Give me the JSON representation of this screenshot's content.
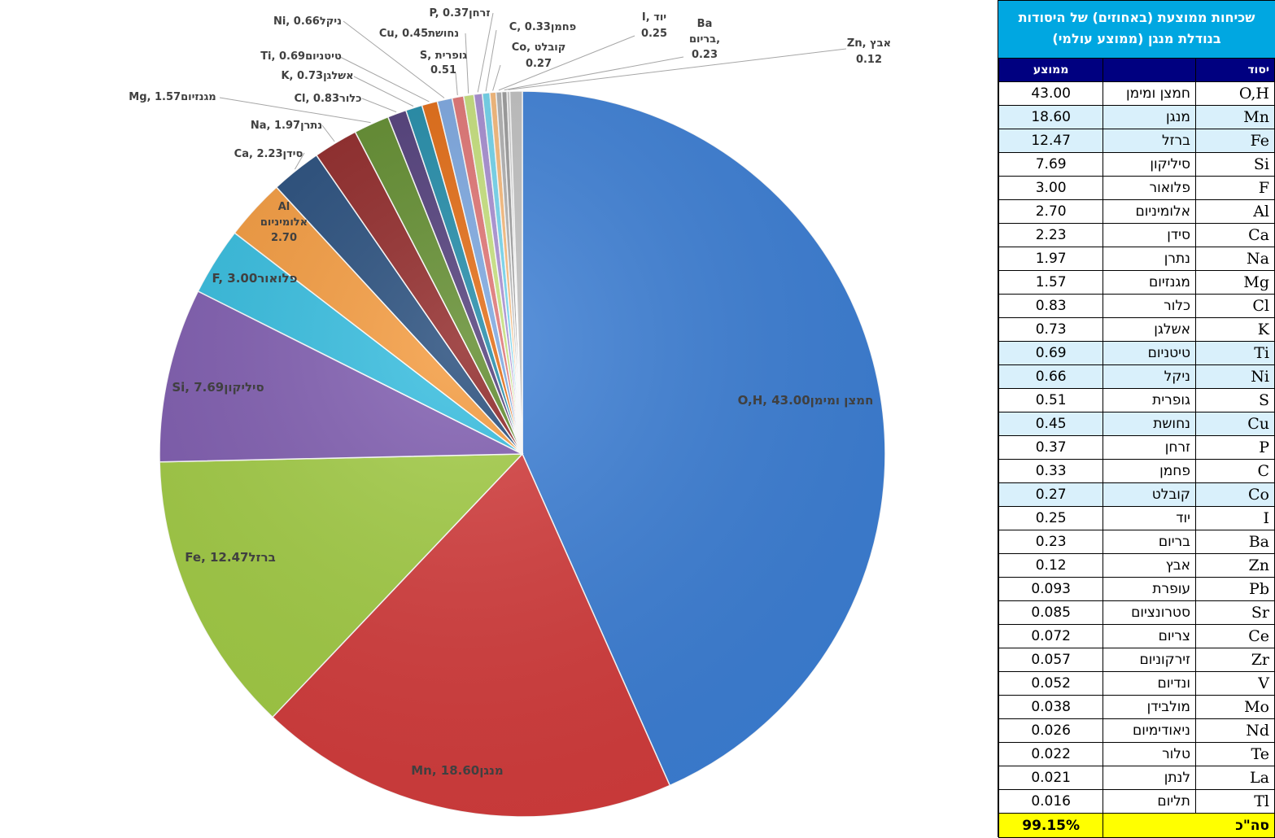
{
  "panel": {
    "title_line1": "שכיחות ממוצעת (באחוזים) של היסודות",
    "title_line2": "בנודלת מנגן (ממוצע עולמי)",
    "col_symbol": "יסוד",
    "col_avg": "ממוצע",
    "total_label": "סה\"כ",
    "total_value": "99.15%",
    "rows": [
      {
        "sym": "O,H",
        "heb": "חמצן ומימן",
        "val": "43.00",
        "hl": false
      },
      {
        "sym": "Mn",
        "heb": "מנגן",
        "val": "18.60",
        "hl": true
      },
      {
        "sym": "Fe",
        "heb": "ברזל",
        "val": "12.47",
        "hl": true
      },
      {
        "sym": "Si",
        "heb": "סיליקון",
        "val": "7.69",
        "hl": false
      },
      {
        "sym": "F",
        "heb": "פלואור",
        "val": "3.00",
        "hl": false
      },
      {
        "sym": "Al",
        "heb": "אלומיניום",
        "val": "2.70",
        "hl": false
      },
      {
        "sym": "Ca",
        "heb": "סידן",
        "val": "2.23",
        "hl": false
      },
      {
        "sym": "Na",
        "heb": "נתרן",
        "val": "1.97",
        "hl": false
      },
      {
        "sym": "Mg",
        "heb": "מגנזיום",
        "val": "1.57",
        "hl": false
      },
      {
        "sym": "Cl",
        "heb": "כלור",
        "val": "0.83",
        "hl": false
      },
      {
        "sym": "K",
        "heb": "אשלגן",
        "val": "0.73",
        "hl": false
      },
      {
        "sym": "Ti",
        "heb": "טיטניום",
        "val": "0.69",
        "hl": true
      },
      {
        "sym": "Ni",
        "heb": "ניקל",
        "val": "0.66",
        "hl": true
      },
      {
        "sym": "S",
        "heb": "גופרית",
        "val": "0.51",
        "hl": false
      },
      {
        "sym": "Cu",
        "heb": "נחושת",
        "val": "0.45",
        "hl": true
      },
      {
        "sym": "P",
        "heb": "זרחן",
        "val": "0.37",
        "hl": false
      },
      {
        "sym": "C",
        "heb": "פחמן",
        "val": "0.33",
        "hl": false
      },
      {
        "sym": "Co",
        "heb": "קובלט",
        "val": "0.27",
        "hl": true
      },
      {
        "sym": "I",
        "heb": "יוד",
        "val": "0.25",
        "hl": false
      },
      {
        "sym": "Ba",
        "heb": "בריום",
        "val": "0.23",
        "hl": false
      },
      {
        "sym": "Zn",
        "heb": "אבץ",
        "val": "0.12",
        "hl": false
      },
      {
        "sym": "Pb",
        "heb": "עופרת",
        "val": "0.093",
        "hl": false
      },
      {
        "sym": "Sr",
        "heb": "סטרונציום",
        "val": "0.085",
        "hl": false
      },
      {
        "sym": "Ce",
        "heb": "צריום",
        "val": "0.072",
        "hl": false
      },
      {
        "sym": "Zr",
        "heb": "זירקוניום",
        "val": "0.057",
        "hl": false
      },
      {
        "sym": "V",
        "heb": "ונדיום",
        "val": "0.052",
        "hl": false
      },
      {
        "sym": "Mo",
        "heb": "מולבידן",
        "val": "0.038",
        "hl": false
      },
      {
        "sym": "Nd",
        "heb": "ניאודימיום",
        "val": "0.026",
        "hl": false
      },
      {
        "sym": "Te",
        "heb": "טלור",
        "val": "0.022",
        "hl": false
      },
      {
        "sym": "La",
        "heb": "לנתן",
        "val": "0.021",
        "hl": false
      },
      {
        "sym": "Tl",
        "heb": "תליום",
        "val": "0.016",
        "hl": false
      }
    ]
  },
  "chart_data": {
    "type": "pie",
    "title": "",
    "slices": [
      {
        "sym": "O,H",
        "name": "חמצן ומימן",
        "value": 43.0,
        "color": "#3c7fd6"
      },
      {
        "sym": "Mn",
        "name": "מנגן",
        "value": 18.6,
        "color": "#d43c3c"
      },
      {
        "sym": "Fe",
        "name": "ברזל",
        "value": 12.47,
        "color": "#a2cc44"
      },
      {
        "sym": "Si",
        "name": "סיליקון",
        "value": 7.69,
        "color": "#7f5cb0"
      },
      {
        "sym": "F",
        "name": "פלואור",
        "value": 3.0,
        "color": "#33bde0"
      },
      {
        "sym": "Al",
        "name": "אלומיניום",
        "value": 2.7,
        "color": "#f59a3c"
      },
      {
        "sym": "Ca",
        "name": "סידן",
        "value": 2.23,
        "color": "#234a7a"
      },
      {
        "sym": "Na",
        "name": "נתרן",
        "value": 1.97,
        "color": "#8e2424"
      },
      {
        "sym": "Mg",
        "name": "מגנזיום",
        "value": 1.57,
        "color": "#5e8a2a"
      },
      {
        "sym": "Cl",
        "name": "כלור",
        "value": 0.83,
        "color": "#4e3a78"
      },
      {
        "sym": "K",
        "name": "אשלגן",
        "value": 0.73,
        "color": "#1e8aa8"
      },
      {
        "sym": "Ti",
        "name": "טיטניום",
        "value": 0.69,
        "color": "#e3690f"
      },
      {
        "sym": "Ni",
        "name": "ניקל",
        "value": 0.66,
        "color": "#7aa6e0"
      },
      {
        "sym": "S",
        "name": "גופרית",
        "value": 0.51,
        "color": "#e07272"
      },
      {
        "sym": "Cu",
        "name": "נחושת",
        "value": 0.45,
        "color": "#c5e07a"
      },
      {
        "sym": "P",
        "name": "זרחן",
        "value": 0.37,
        "color": "#a58bd0"
      },
      {
        "sym": "C",
        "name": "פחמן",
        "value": 0.33,
        "color": "#6fd3ec"
      },
      {
        "sym": "Co",
        "name": "קובלט",
        "value": 0.27,
        "color": "#f7b877"
      },
      {
        "sym": "I",
        "name": "יוד",
        "value": 0.25,
        "color": "#b0b0b0"
      },
      {
        "sym": "Ba",
        "name": "בריום",
        "value": 0.23,
        "color": "#9a9a9a"
      },
      {
        "sym": "Zn",
        "name": "אבץ",
        "value": 0.12,
        "color": "#c8c8c8"
      }
    ],
    "remainder_value": 0.55,
    "remainder_color": "#c0c0c0"
  }
}
